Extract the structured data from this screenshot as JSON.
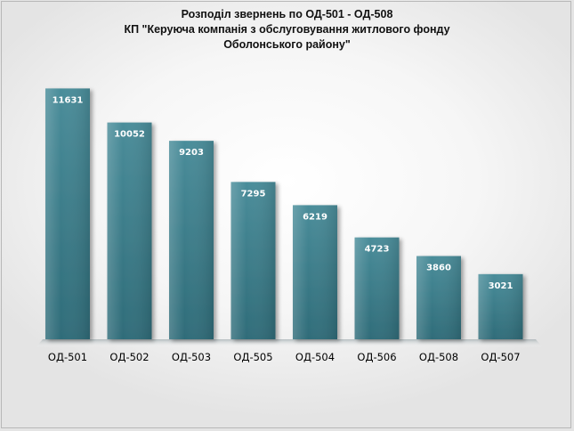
{
  "chart_data": {
    "type": "bar",
    "title": "Розподіл звернень по ОД-501 - ОД-508",
    "subtitle": [
      "КП \"Керуюча компанія з обслуговування житлового фонду",
      "Оболонського району\""
    ],
    "categories": [
      "ОД-501",
      "ОД-502",
      "ОД-503",
      "ОД-505",
      "ОД-504",
      "ОД-506",
      "ОД-508",
      "ОД-507"
    ],
    "values": [
      11631,
      10052,
      9203,
      7295,
      6219,
      4723,
      3860,
      3021
    ],
    "xlabel": "",
    "ylabel": "",
    "ylim": [
      0,
      14000
    ],
    "grid": false,
    "legend": "none",
    "data_labels": true
  },
  "colors": {
    "bar_top": "#4a8d9a",
    "bar_bottom": "#2f6c79",
    "bar_label": "#ffffff",
    "floor": "#b9c3c6"
  }
}
